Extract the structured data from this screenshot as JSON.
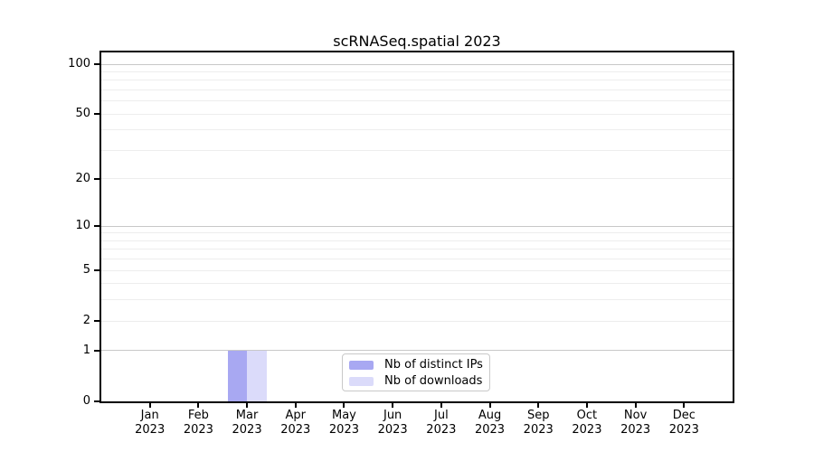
{
  "title": "scRNASeq.spatial 2023",
  "chart_data": {
    "type": "bar",
    "title": "scRNASeq.spatial 2023",
    "categories": [
      "Jan 2023",
      "Feb 2023",
      "Mar 2023",
      "Apr 2023",
      "May 2023",
      "Jun 2023",
      "Jul 2023",
      "Aug 2023",
      "Sep 2023",
      "Oct 2023",
      "Nov 2023",
      "Dec 2023"
    ],
    "series": [
      {
        "name": "Nb of distinct IPs",
        "color": "#a8a8f2",
        "values": [
          0,
          0,
          1,
          0,
          0,
          0,
          0,
          0,
          0,
          0,
          0,
          0
        ]
      },
      {
        "name": "Nb of downloads",
        "color": "#dbdbfa",
        "values": [
          0,
          0,
          1,
          0,
          0,
          0,
          0,
          0,
          0,
          0,
          0,
          0
        ]
      }
    ],
    "xlabel": "",
    "ylabel": "",
    "y_axis": {
      "scale": "log10(value+1)",
      "tick_labels": [
        100,
        50,
        20,
        10,
        5,
        2,
        1,
        0
      ],
      "major_gridlines": [
        1,
        10,
        100
      ],
      "minor_gridlines": [
        2,
        3,
        4,
        5,
        6,
        7,
        8,
        9,
        20,
        30,
        40,
        50,
        60,
        70,
        80,
        90
      ],
      "ylim": [
        0,
        117
      ]
    },
    "grid": "horizontal",
    "legend": {
      "position": "lower center",
      "entries": [
        "Nb of distinct IPs",
        "Nb of downloads"
      ]
    }
  }
}
